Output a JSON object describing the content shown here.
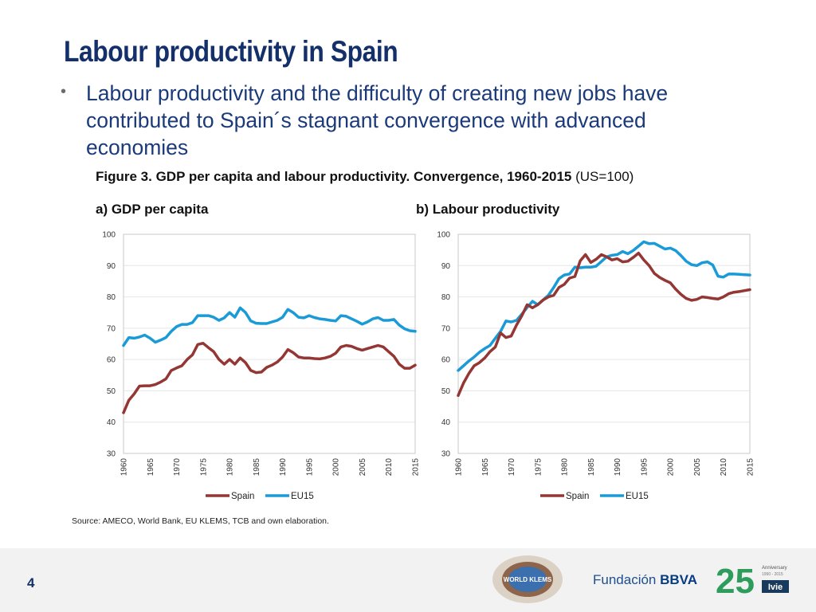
{
  "slide": {
    "title": "Labour productivity in Spain",
    "bullet": "Labour productivity and the difficulty of creating new jobs have contributed to Spain´s stagnant convergence with advanced economies",
    "figure_caption_bold": "Figure 3. GDP per capita and labour productivity. Convergence, 1960-2015",
    "figure_caption_rest": " (US=100)",
    "source": "Source: AMECO, World Bank, EU KLEMS, TCB and own elaboration.",
    "page_number": "4"
  },
  "logos": {
    "klems": "WORLD KLEMS",
    "fbbva_prefix": "Fundación ",
    "fbbva_bold": "BBVA",
    "ivie_number": "25",
    "ivie_anniversary": "Anniversary",
    "ivie_years": "1990 - 2015",
    "ivie_name": "Ivie"
  },
  "colors": {
    "title": "#14306a",
    "spain": "#943634",
    "eu15": "#1a9bd7"
  },
  "chart_data": [
    {
      "id": "a",
      "type": "line",
      "title": "a) GDP per capita",
      "x": [
        1960,
        1961,
        1962,
        1963,
        1964,
        1965,
        1966,
        1967,
        1968,
        1969,
        1970,
        1971,
        1972,
        1973,
        1974,
        1975,
        1976,
        1977,
        1978,
        1979,
        1980,
        1981,
        1982,
        1983,
        1984,
        1985,
        1986,
        1987,
        1988,
        1989,
        1990,
        1991,
        1992,
        1993,
        1994,
        1995,
        1996,
        1997,
        1998,
        1999,
        2000,
        2001,
        2002,
        2003,
        2004,
        2005,
        2006,
        2007,
        2008,
        2009,
        2010,
        2011,
        2012,
        2013,
        2014,
        2015
      ],
      "series": [
        {
          "name": "Spain",
          "values": [
            43,
            47,
            49,
            51.5,
            51.6,
            51.6,
            52,
            52.8,
            53.8,
            56.5,
            57.3,
            58,
            60,
            61.5,
            64.8,
            65.2,
            63.8,
            62.5,
            60,
            58.5,
            60,
            58.5,
            60.5,
            59,
            56.5,
            55.8,
            56,
            57.5,
            58.2,
            59.2,
            60.8,
            63.2,
            62.2,
            60.8,
            60.5,
            60.5,
            60.3,
            60.2,
            60.5,
            61,
            62,
            64,
            64.5,
            64.2,
            63.5,
            63,
            63.5,
            64,
            64.5,
            64,
            62.5,
            61,
            58.5,
            57.2,
            57.2,
            58.2
          ]
        },
        {
          "name": "EU15",
          "values": [
            64.5,
            67,
            66.8,
            67.2,
            67.8,
            66.8,
            65.5,
            66.2,
            67,
            69,
            70.5,
            71.2,
            71.2,
            71.8,
            74,
            74,
            74,
            73.5,
            72.5,
            73.3,
            75,
            73.5,
            76.5,
            75,
            72.3,
            71.6,
            71.5,
            71.5,
            72,
            72.5,
            73.5,
            76,
            75,
            73.5,
            73.3,
            74,
            73.4,
            73,
            72.8,
            72.5,
            72.3,
            74,
            73.8,
            73,
            72.2,
            71.3,
            72,
            73,
            73.4,
            72.5,
            72.5,
            72.8,
            71,
            69.8,
            69.2,
            69
          ]
        }
      ],
      "ylim": [
        30,
        100
      ],
      "yticks": [
        "100",
        "90",
        "80",
        "70",
        "60",
        "50",
        "40",
        "30"
      ],
      "xtick_labels": [
        "1960",
        "1965",
        "1970",
        "1975",
        "1980",
        "1985",
        "1990",
        "1995",
        "2000",
        "2005",
        "2010",
        "2015"
      ],
      "legend": [
        "Spain",
        "EU15"
      ],
      "legend_position": "bottom-center"
    },
    {
      "id": "b",
      "type": "line",
      "title": "b) Labour productivity",
      "x": [
        1960,
        1961,
        1962,
        1963,
        1964,
        1965,
        1966,
        1967,
        1968,
        1969,
        1970,
        1971,
        1972,
        1973,
        1974,
        1975,
        1976,
        1977,
        1978,
        1979,
        1980,
        1981,
        1982,
        1983,
        1984,
        1985,
        1986,
        1987,
        1988,
        1989,
        1990,
        1991,
        1992,
        1993,
        1994,
        1995,
        1996,
        1997,
        1998,
        1999,
        2000,
        2001,
        2002,
        2003,
        2004,
        2005,
        2006,
        2007,
        2008,
        2009,
        2010,
        2011,
        2012,
        2013,
        2014,
        2015
      ],
      "series": [
        {
          "name": "Spain",
          "values": [
            48.5,
            52.5,
            55.5,
            58,
            59,
            60.5,
            62.5,
            64,
            68.5,
            67,
            67.5,
            71,
            74,
            77.5,
            76.5,
            77.5,
            79,
            80,
            80.5,
            83,
            84,
            86,
            86.5,
            91.5,
            93.5,
            91,
            92,
            93.5,
            92.8,
            91.8,
            92.2,
            91.2,
            91.4,
            92.6,
            94,
            91.8,
            90,
            87.5,
            86.2,
            85.3,
            84.5,
            82.5,
            80.8,
            79.5,
            78.9,
            79.2,
            80,
            79.8,
            79.5,
            79.3,
            80,
            81,
            81.5,
            81.7,
            82,
            82.3
          ]
        },
        {
          "name": "EU15",
          "values": [
            56.5,
            58,
            59.5,
            60.8,
            62.3,
            63.5,
            64.5,
            66.8,
            69,
            72.3,
            72,
            72.5,
            74.5,
            76.6,
            78.6,
            77.5,
            79,
            80.5,
            83,
            85.8,
            87,
            87.3,
            89.5,
            89.3,
            89.5,
            89.5,
            89.8,
            91.3,
            92.8,
            93.3,
            93.5,
            94.5,
            93.8,
            94.8,
            96.2,
            97.6,
            97,
            97.1,
            96.2,
            95.3,
            95.6,
            94.8,
            93.2,
            91.4,
            90.3,
            90,
            90.9,
            91.2,
            90.2,
            86.6,
            86.3,
            87.3,
            87.3,
            87.2,
            87.1,
            87
          ]
        }
      ],
      "ylim": [
        30,
        100
      ],
      "yticks": [
        "100",
        "90",
        "80",
        "70",
        "60",
        "50",
        "40",
        "30"
      ],
      "xtick_labels": [
        "1960",
        "1965",
        "1970",
        "1975",
        "1980",
        "1985",
        "1990",
        "1995",
        "2000",
        "2005",
        "2010",
        "2015"
      ],
      "legend": [
        "Spain",
        "EU15"
      ],
      "legend_position": "bottom-center"
    }
  ]
}
